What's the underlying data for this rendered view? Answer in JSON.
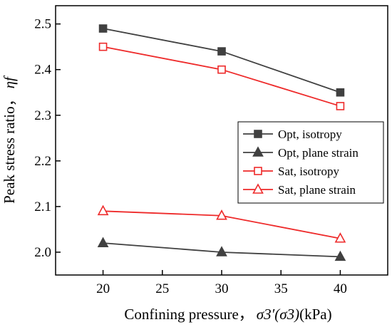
{
  "chart_data": {
    "type": "line",
    "x": [
      20,
      30,
      40
    ],
    "xlabel": "Confining pressure，",
    "xlabel_math": "σ3′(σ3)",
    "xlabel_unit": "(kPa)",
    "ylabel": "Peak stress ratio，",
    "ylabel_math": "ηf",
    "xlim": [
      16,
      44
    ],
    "ylim": [
      1.95,
      2.54
    ],
    "xticks": [
      20,
      25,
      30,
      35,
      40
    ],
    "yticks": [
      2.0,
      2.1,
      2.2,
      2.3,
      2.4,
      2.5
    ],
    "grid": false,
    "legend_position": "right",
    "series": [
      {
        "name": "Opt, isotropy",
        "values": [
          2.49,
          2.44,
          2.35
        ],
        "color": "#404040",
        "marker": "square-filled"
      },
      {
        "name": "Opt, plane strain",
        "values": [
          2.02,
          2.0,
          1.99
        ],
        "color": "#404040",
        "marker": "triangle-filled"
      },
      {
        "name": "Sat, isotropy",
        "values": [
          2.45,
          2.4,
          2.32
        ],
        "color": "#ee2a2a",
        "marker": "square-open"
      },
      {
        "name": "Sat, plane strain",
        "values": [
          2.09,
          2.08,
          2.03
        ],
        "color": "#ee2a2a",
        "marker": "triangle-open"
      }
    ]
  }
}
